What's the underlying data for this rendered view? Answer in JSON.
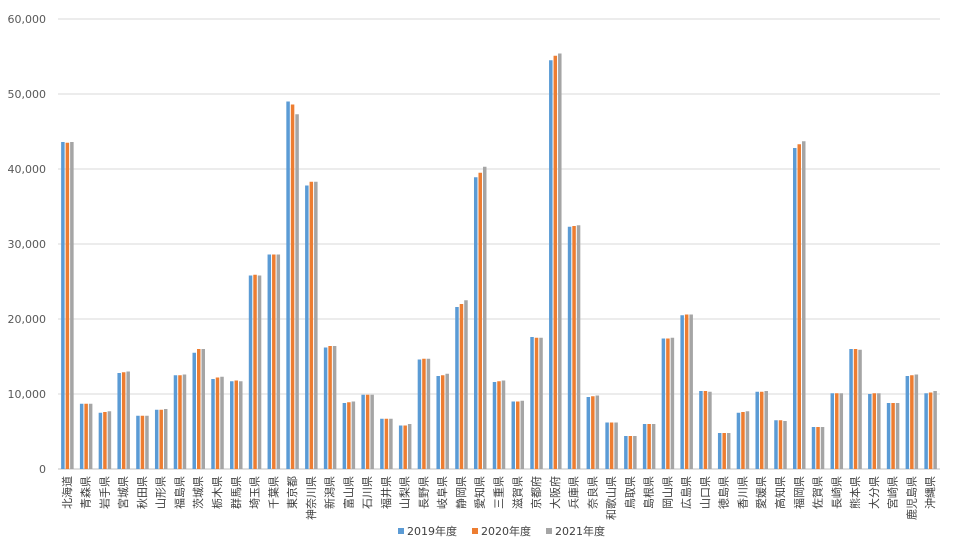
{
  "chart_data": {
    "type": "bar",
    "title": "",
    "xlabel": "",
    "ylabel": "",
    "ylim": [
      0,
      60000
    ],
    "yticks": [
      0,
      10000,
      20000,
      30000,
      40000,
      50000,
      60000
    ],
    "ytick_labels": [
      "0",
      "10,000",
      "20,000",
      "30,000",
      "40,000",
      "50,000",
      "60,000"
    ],
    "grid": true,
    "legend": "bottom",
    "categories": [
      "北海道",
      "青森県",
      "岩手県",
      "宮城県",
      "秋田県",
      "山形県",
      "福島県",
      "茨城県",
      "栃木県",
      "群馬県",
      "埼玉県",
      "千葉県",
      "東京都",
      "神奈川県",
      "新潟県",
      "富山県",
      "石川県",
      "福井県",
      "山梨県",
      "長野県",
      "岐阜県",
      "静岡県",
      "愛知県",
      "三重県",
      "滋賀県",
      "京都府",
      "大阪府",
      "兵庫県",
      "奈良県",
      "和歌山県",
      "鳥取県",
      "島根県",
      "岡山県",
      "広島県",
      "山口県",
      "徳島県",
      "香川県",
      "愛媛県",
      "高知県",
      "福岡県",
      "佐賀県",
      "長崎県",
      "熊本県",
      "大分県",
      "宮崎県",
      "鹿児島県",
      "沖縄県"
    ],
    "series": [
      {
        "name": "2019年度",
        "color": "#5B9BD5",
        "values": [
          43600,
          8700,
          7500,
          12800,
          7100,
          7900,
          12500,
          15500,
          12000,
          11700,
          25800,
          28600,
          49000,
          37800,
          16200,
          8800,
          9900,
          6700,
          5800,
          14600,
          12400,
          21600,
          38900,
          11600,
          9000,
          17600,
          54500,
          32300,
          9600,
          6200,
          4400,
          6000,
          17400,
          20500,
          10400,
          4800,
          7500,
          10300,
          6500,
          42800,
          5600,
          10100,
          16000,
          10000,
          8800,
          12400,
          10100
        ]
      },
      {
        "name": "2020年度",
        "color": "#ED7D31",
        "values": [
          43500,
          8700,
          7600,
          12900,
          7100,
          7900,
          12500,
          16000,
          12200,
          11800,
          25900,
          28600,
          48600,
          38300,
          16400,
          8900,
          9900,
          6700,
          5800,
          14700,
          12500,
          22000,
          39500,
          11700,
          9000,
          17500,
          55100,
          32400,
          9700,
          6200,
          4400,
          6000,
          17400,
          20600,
          10400,
          4800,
          7600,
          10300,
          6500,
          43300,
          5600,
          10100,
          16000,
          10100,
          8800,
          12500,
          10200
        ]
      },
      {
        "name": "2021年度",
        "color": "#A5A5A5",
        "values": [
          43600,
          8700,
          7700,
          13000,
          7100,
          8000,
          12600,
          16000,
          12300,
          11700,
          25800,
          28600,
          47300,
          38300,
          16400,
          9000,
          9900,
          6700,
          6000,
          14700,
          12700,
          22500,
          40300,
          11800,
          9100,
          17500,
          55400,
          32500,
          9800,
          6200,
          4400,
          6000,
          17500,
          20600,
          10300,
          4800,
          7700,
          10400,
          6400,
          43700,
          5600,
          10100,
          15900,
          10100,
          8800,
          12600,
          10400
        ]
      }
    ]
  }
}
